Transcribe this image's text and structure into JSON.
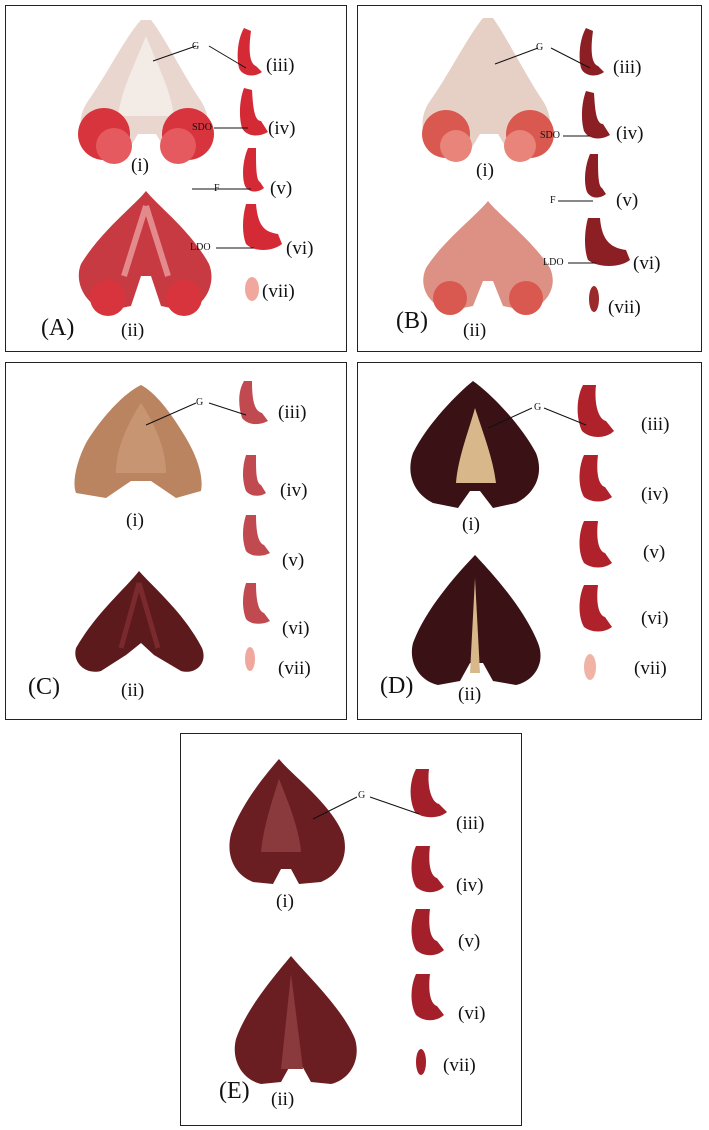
{
  "panels": [
    {
      "letter": "(A)",
      "roman": [
        "(i)",
        "(ii)",
        "(iii)",
        "(iv)",
        "(v)",
        "(vi)",
        "(vii)"
      ],
      "annotations": [
        "G",
        "SDO",
        "F",
        "LDO"
      ]
    },
    {
      "letter": "(B)",
      "roman": [
        "(i)",
        "(ii)",
        "(iii)",
        "(iv)",
        "(v)",
        "(vi)",
        "(vii)"
      ],
      "annotations": [
        "G",
        "SDO",
        "F",
        "LDO"
      ]
    },
    {
      "letter": "(C)",
      "roman": [
        "(i)",
        "(ii)",
        "(iii)",
        "(iv)",
        "(v)",
        "(vi)",
        "(vii)"
      ],
      "annotations": [
        "G"
      ]
    },
    {
      "letter": "(D)",
      "roman": [
        "(i)",
        "(ii)",
        "(iii)",
        "(iv)",
        "(v)",
        "(vi)",
        "(vii)"
      ],
      "annotations": [
        "G"
      ]
    },
    {
      "letter": "(E)",
      "roman": [
        "(i)",
        "(ii)",
        "(iii)",
        "(iv)",
        "(v)",
        "(vi)",
        "(vii)"
      ],
      "annotations": [
        "G"
      ]
    }
  ],
  "colors": {
    "raw_red": "#d2313a",
    "raw_pale": "#ecd9d4",
    "cooked_tan": "#b97a55",
    "cooked_dark": "#5a1a1c",
    "deep_red": "#8c1f24"
  }
}
